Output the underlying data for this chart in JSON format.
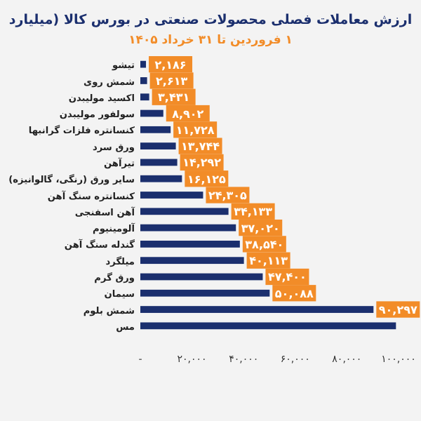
{
  "chart_data": {
    "type": "bar",
    "orientation": "horizontal",
    "title": "ارزش معاملات فصلی محصولات صنعتی در بورس کالا (میلیارد",
    "subtitle": "۱ فروردین تا ۳۱ خرداد ۱۴۰۵",
    "categories": [
      "تیشو",
      "شمش روی",
      "اکسید مولیبدن",
      "سولفور مولیبدن",
      "کنسانتره فلزات گرانبها",
      "ورق سرد",
      "تیرآهن",
      "سایر ورق (رنگی، گالوانیزه)",
      "کنسانتره سنگ آهن",
      "آهن اسفنجی",
      "آلومینیوم",
      "گندله سنگ آهن",
      "میلگرد",
      "ورق گرم",
      "سیمان",
      "شمش بلوم",
      "مس"
    ],
    "values": [
      2186,
      2613,
      3431,
      8902,
      11728,
      13744,
      14292,
      16125,
      24305,
      34133,
      37020,
      38540,
      40113,
      47400,
      50088,
      90297,
      99000
    ],
    "value_labels": [
      "۲,۱۸۶",
      "۲,۶۱۳",
      "۳,۴۳۱",
      "۸,۹۰۲",
      "۱۱,۷۲۸",
      "۱۳,۷۴۴",
      "۱۴,۲۹۲",
      "۱۶,۱۲۵",
      "۲۴,۳۰۵",
      "۳۴,۱۳۳",
      "۳۷,۰۲۰",
      "۳۸,۵۴۰",
      "۴۰,۱۱۳",
      "۴۷,۴۰۰",
      "۵۰,۰۸۸",
      "۹۰,۲۹۷",
      null
    ],
    "color": "#1b2f6e",
    "xlim": [
      0,
      100000
    ],
    "xticks": [
      {
        "value": 0,
        "label": "-"
      },
      {
        "value": 20000,
        "label": "۲۰,۰۰۰"
      },
      {
        "value": 40000,
        "label": "۴۰,۰۰۰"
      },
      {
        "value": 60000,
        "label": "۶۰,۰۰۰"
      },
      {
        "value": 80000,
        "label": "۸۰,۰۰۰"
      },
      {
        "value": 100000,
        "label": "۱۰۰,۰۰۰"
      }
    ]
  }
}
